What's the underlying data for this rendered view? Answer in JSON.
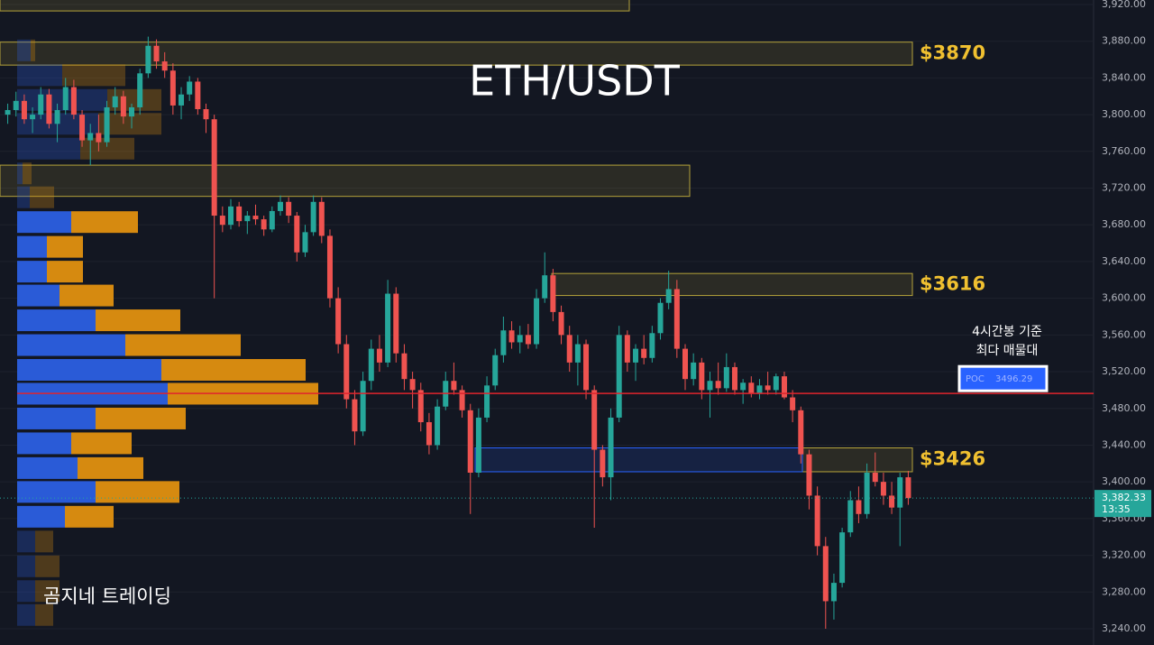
{
  "chart_data": {
    "type": "candlestick",
    "title": "ETH/USDT",
    "watermark": "곰지네 트레이딩",
    "annotation": [
      "4시간봉 기준",
      "최다 매물대"
    ],
    "up_color": "#26a69a",
    "down_color": "#ef5350",
    "grid": true,
    "ylim": [
      3222.3,
      3924.9
    ],
    "yticks": [
      {
        "value": 3240,
        "label": "3,240.00"
      },
      {
        "value": 3280,
        "label": "3,280.00"
      },
      {
        "value": 3320,
        "label": "3,320.00"
      },
      {
        "value": 3360,
        "label": "3,360.00"
      },
      {
        "value": 3400,
        "label": "3,400.00"
      },
      {
        "value": 3440,
        "label": "3,440.00"
      },
      {
        "value": 3480,
        "label": "3,480.00"
      },
      {
        "value": 3520,
        "label": "3,520.00"
      },
      {
        "value": 3560,
        "label": "3,560.00"
      },
      {
        "value": 3600,
        "label": "3,600.00"
      },
      {
        "value": 3640,
        "label": "3,640.00"
      },
      {
        "value": 3680,
        "label": "3,680.00"
      },
      {
        "value": 3720,
        "label": "3,720.00"
      },
      {
        "value": 3760,
        "label": "3,760.00"
      },
      {
        "value": 3800,
        "label": "3,800.00"
      },
      {
        "value": 3840,
        "label": "3,840.00"
      },
      {
        "value": 3880,
        "label": "3,880.00"
      },
      {
        "value": 3920,
        "label": "3,920.00"
      }
    ],
    "ohlc": [
      [
        3800,
        3812,
        3790,
        3805
      ],
      [
        3805,
        3825,
        3798,
        3815
      ],
      [
        3815,
        3822,
        3790,
        3795
      ],
      [
        3795,
        3808,
        3780,
        3800
      ],
      [
        3800,
        3830,
        3795,
        3822
      ],
      [
        3822,
        3828,
        3785,
        3790
      ],
      [
        3790,
        3812,
        3770,
        3805
      ],
      [
        3805,
        3840,
        3800,
        3830
      ],
      [
        3830,
        3838,
        3795,
        3800
      ],
      [
        3800,
        3805,
        3765,
        3772
      ],
      [
        3772,
        3790,
        3745,
        3780
      ],
      [
        3780,
        3800,
        3760,
        3770
      ],
      [
        3770,
        3815,
        3765,
        3808
      ],
      [
        3808,
        3830,
        3800,
        3820
      ],
      [
        3820,
        3826,
        3790,
        3798
      ],
      [
        3798,
        3812,
        3785,
        3808
      ],
      [
        3808,
        3850,
        3800,
        3845
      ],
      [
        3845,
        3885,
        3840,
        3875
      ],
      [
        3875,
        3882,
        3850,
        3858
      ],
      [
        3858,
        3868,
        3840,
        3848
      ],
      [
        3848,
        3856,
        3800,
        3810
      ],
      [
        3810,
        3830,
        3795,
        3822
      ],
      [
        3822,
        3842,
        3815,
        3836
      ],
      [
        3836,
        3840,
        3800,
        3806
      ],
      [
        3806,
        3812,
        3780,
        3795
      ],
      [
        3795,
        3800,
        3600,
        3690
      ],
      [
        3690,
        3700,
        3672,
        3680
      ],
      [
        3680,
        3708,
        3675,
        3700
      ],
      [
        3700,
        3705,
        3678,
        3684
      ],
      [
        3684,
        3695,
        3670,
        3690
      ],
      [
        3690,
        3702,
        3680,
        3686
      ],
      [
        3686,
        3690,
        3668,
        3675
      ],
      [
        3675,
        3700,
        3672,
        3695
      ],
      [
        3695,
        3712,
        3690,
        3705
      ],
      [
        3705,
        3710,
        3682,
        3690
      ],
      [
        3690,
        3694,
        3640,
        3650
      ],
      [
        3650,
        3680,
        3645,
        3672
      ],
      [
        3672,
        3712,
        3668,
        3705
      ],
      [
        3705,
        3710,
        3660,
        3668
      ],
      [
        3668,
        3675,
        3590,
        3600
      ],
      [
        3600,
        3612,
        3540,
        3550
      ],
      [
        3550,
        3560,
        3480,
        3490
      ],
      [
        3490,
        3500,
        3440,
        3455
      ],
      [
        3455,
        3520,
        3450,
        3510
      ],
      [
        3510,
        3555,
        3500,
        3545
      ],
      [
        3545,
        3560,
        3520,
        3530
      ],
      [
        3530,
        3620,
        3525,
        3605
      ],
      [
        3605,
        3612,
        3530,
        3540
      ],
      [
        3540,
        3550,
        3500,
        3512
      ],
      [
        3512,
        3520,
        3480,
        3500
      ],
      [
        3500,
        3508,
        3455,
        3465
      ],
      [
        3465,
        3475,
        3430,
        3440
      ],
      [
        3440,
        3490,
        3435,
        3482
      ],
      [
        3482,
        3520,
        3478,
        3510
      ],
      [
        3510,
        3530,
        3495,
        3500
      ],
      [
        3500,
        3505,
        3470,
        3478
      ],
      [
        3478,
        3485,
        3365,
        3410
      ],
      [
        3410,
        3480,
        3405,
        3470
      ],
      [
        3470,
        3515,
        3465,
        3505
      ],
      [
        3505,
        3545,
        3500,
        3538
      ],
      [
        3538,
        3580,
        3530,
        3565
      ],
      [
        3565,
        3575,
        3545,
        3552
      ],
      [
        3552,
        3570,
        3540,
        3560
      ],
      [
        3560,
        3572,
        3545,
        3550
      ],
      [
        3550,
        3610,
        3545,
        3600
      ],
      [
        3600,
        3650,
        3595,
        3625
      ],
      [
        3625,
        3632,
        3575,
        3585
      ],
      [
        3585,
        3592,
        3550,
        3560
      ],
      [
        3560,
        3570,
        3520,
        3530
      ],
      [
        3530,
        3560,
        3505,
        3550
      ],
      [
        3550,
        3555,
        3490,
        3500
      ],
      [
        3500,
        3505,
        3350,
        3435
      ],
      [
        3435,
        3440,
        3395,
        3405
      ],
      [
        3405,
        3480,
        3380,
        3470
      ],
      [
        3470,
        3570,
        3465,
        3560
      ],
      [
        3560,
        3565,
        3520,
        3530
      ],
      [
        3530,
        3550,
        3510,
        3545
      ],
      [
        3545,
        3560,
        3528,
        3535
      ],
      [
        3535,
        3570,
        3530,
        3562
      ],
      [
        3562,
        3600,
        3555,
        3595
      ],
      [
        3595,
        3630,
        3588,
        3610
      ],
      [
        3610,
        3620,
        3535,
        3545
      ],
      [
        3545,
        3550,
        3500,
        3512
      ],
      [
        3512,
        3540,
        3505,
        3530
      ],
      [
        3530,
        3535,
        3490,
        3500
      ],
      [
        3500,
        3520,
        3470,
        3510
      ],
      [
        3510,
        3530,
        3495,
        3502
      ],
      [
        3502,
        3540,
        3498,
        3525
      ],
      [
        3525,
        3530,
        3495,
        3500
      ],
      [
        3500,
        3512,
        3485,
        3508
      ],
      [
        3508,
        3515,
        3492,
        3496
      ],
      [
        3496,
        3512,
        3490,
        3505
      ],
      [
        3505,
        3520,
        3495,
        3500
      ],
      [
        3500,
        3518,
        3495,
        3515
      ],
      [
        3515,
        3520,
        3490,
        3492
      ],
      [
        3492,
        3500,
        3465,
        3478
      ],
      [
        3478,
        3482,
        3420,
        3430
      ],
      [
        3430,
        3435,
        3370,
        3385
      ],
      [
        3385,
        3395,
        3320,
        3330
      ],
      [
        3330,
        3340,
        3240,
        3270
      ],
      [
        3270,
        3300,
        3250,
        3290
      ],
      [
        3290,
        3350,
        3285,
        3345
      ],
      [
        3345,
        3390,
        3340,
        3380
      ],
      [
        3380,
        3395,
        3355,
        3365
      ],
      [
        3365,
        3420,
        3360,
        3410
      ],
      [
        3410,
        3432,
        3395,
        3400
      ],
      [
        3400,
        3410,
        3375,
        3385
      ],
      [
        3385,
        3400,
        3365,
        3372
      ],
      [
        3372,
        3410,
        3330,
        3405
      ],
      [
        3405,
        3412,
        3375,
        3382.33
      ]
    ],
    "last_price": {
      "value": 3382.33,
      "label": "3,382.33"
    },
    "last_time": "13:35",
    "volume_profile": {
      "buy_color": "#2a5bd7",
      "sell_color": "#d68a10",
      "value_area": [
        3362,
        3683
      ],
      "levels": [
        3870,
        3843,
        3816,
        3790,
        3763,
        3736,
        3710,
        3683,
        3656,
        3629,
        3603,
        3576,
        3549,
        3522,
        3496,
        3469,
        3442,
        3415,
        3389,
        3362,
        3335,
        3308,
        3281,
        3255
      ],
      "buy": [
        15,
        50,
        100,
        90,
        70,
        6,
        14,
        60,
        33,
        33,
        47,
        87,
        120,
        160,
        167,
        87,
        60,
        67,
        87,
        53,
        20,
        20,
        20,
        20
      ],
      "sell": [
        5,
        70,
        60,
        70,
        60,
        10,
        27,
        74,
        40,
        40,
        60,
        94,
        128,
        160,
        167,
        100,
        67,
        73,
        93,
        54,
        20,
        27,
        27,
        20
      ]
    },
    "poc": {
      "label": "POC",
      "value": 3496.29,
      "color": "#e0242d"
    },
    "zones": [
      {
        "low": 3913,
        "high": 3935,
        "color": "#b5a33a"
      },
      {
        "low": 3854,
        "high": 3879,
        "color": "#b5a33a",
        "label": "$3870"
      },
      {
        "low": 3711,
        "high": 3745,
        "color": "#b5a33a"
      },
      {
        "low": 3603,
        "high": 3627,
        "color": "#b5a33a",
        "label": "$3616"
      },
      {
        "low": 3411,
        "high": 3437,
        "color": "#b5a33a",
        "label": "$3426"
      },
      {
        "low": 3411,
        "high": 3437,
        "color": "#2962ff"
      }
    ]
  }
}
